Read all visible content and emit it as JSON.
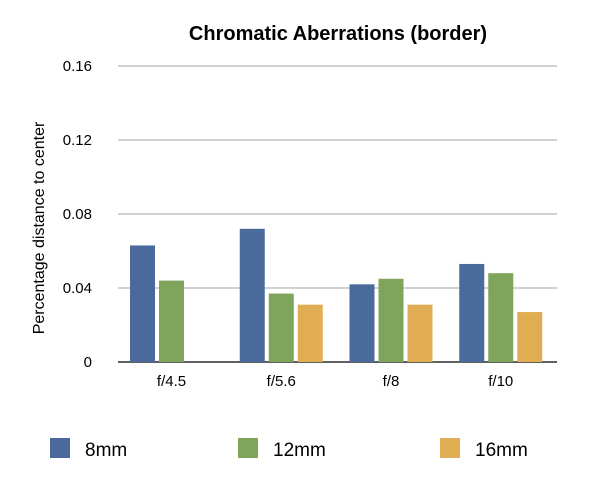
{
  "chart_data": {
    "type": "bar",
    "title": "Chromatic  Aberrations (border)",
    "xlabel": "",
    "ylabel": "Percentage distance to center",
    "categories": [
      "f/4.5",
      "f/5.6",
      "f/8",
      "f/10"
    ],
    "yticks": [
      "0",
      "0.04",
      "0.08",
      "0.12",
      "0.16"
    ],
    "ylim": [
      0,
      0.16
    ],
    "grid": true,
    "legend_position": "bottom",
    "series": [
      {
        "name": "8mm",
        "color": "#4a6a9c",
        "values": [
          0.063,
          0.072,
          0.042,
          0.053
        ]
      },
      {
        "name": "12mm",
        "color": "#7fa45c",
        "values": [
          0.044,
          0.037,
          0.045,
          0.048
        ]
      },
      {
        "name": "16mm",
        "color": "#e1ad52",
        "values": [
          0,
          0.031,
          0.031,
          0.027
        ]
      }
    ]
  }
}
